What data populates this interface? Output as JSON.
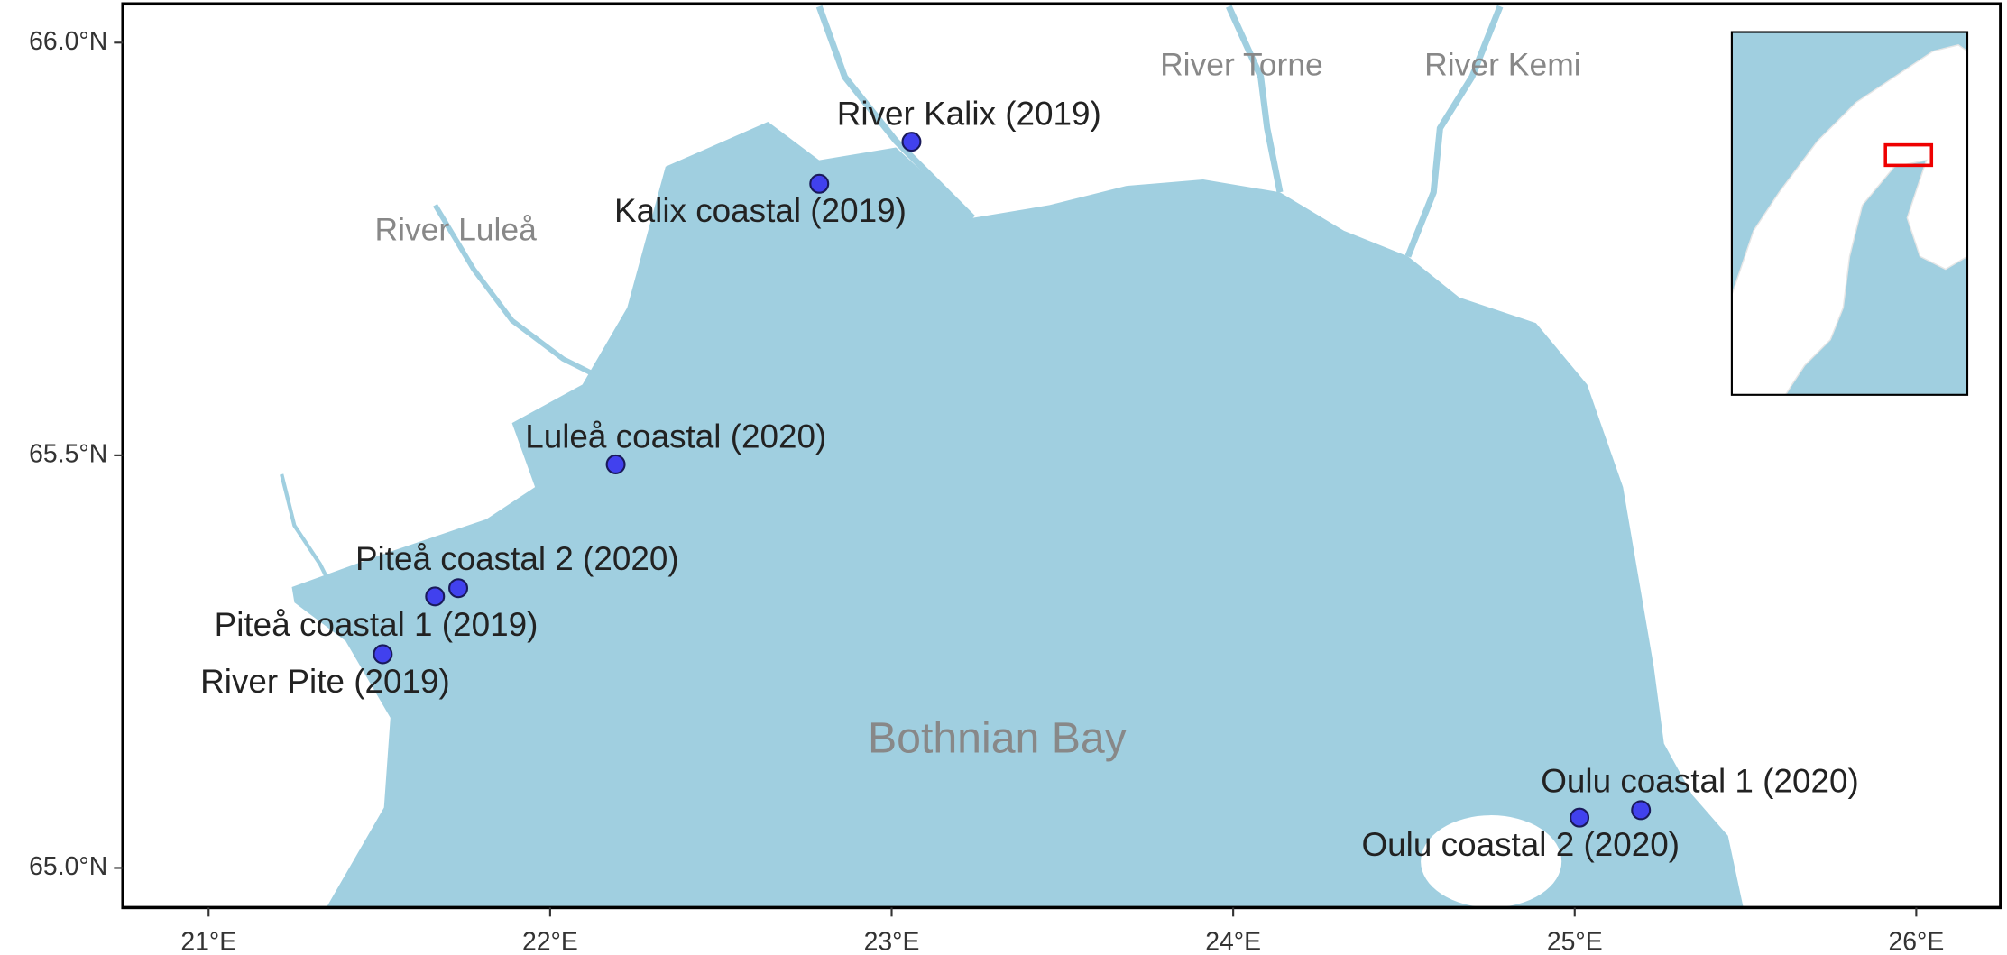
{
  "chart_data": {
    "type": "scatter",
    "x": [
      23.058,
      22.788,
      22.192,
      21.731,
      21.663,
      21.51,
      25.194,
      25.014
    ],
    "y": [
      65.88,
      65.829,
      65.489,
      65.339,
      65.329,
      65.259,
      65.07,
      65.061
    ],
    "point_labels": [
      "River Kalix (2019)",
      "Kalix coastal (2019)",
      "Luleå coastal (2020)",
      "Piteå coastal 2 (2020)",
      "Piteå coastal 1 (2019)",
      "River Pite (2019)",
      "Oulu coastal 1 (2020)",
      "Oulu coastal 2 (2020)"
    ],
    "color": "#4141ee",
    "annotations": [
      "River Torne",
      "River Kemi",
      "River Luleå",
      "Bothnian Bay"
    ],
    "xlim": [
      20.749,
      26.247
    ],
    "ylim": [
      64.952,
      66.047
    ],
    "xticks": [
      {
        "value": 21,
        "label": "21°E"
      },
      {
        "value": 22,
        "label": "22°E"
      },
      {
        "value": 23,
        "label": "23°E"
      },
      {
        "value": 24,
        "label": "24°E"
      },
      {
        "value": 25,
        "label": "25°E"
      },
      {
        "value": 26,
        "label": "26°E"
      }
    ],
    "yticks": [
      {
        "value": 65.0,
        "label": "65.0°N"
      },
      {
        "value": 65.5,
        "label": "65.5°N"
      },
      {
        "value": 66.0,
        "label": "66.0°N"
      }
    ],
    "grid": false
  }
}
